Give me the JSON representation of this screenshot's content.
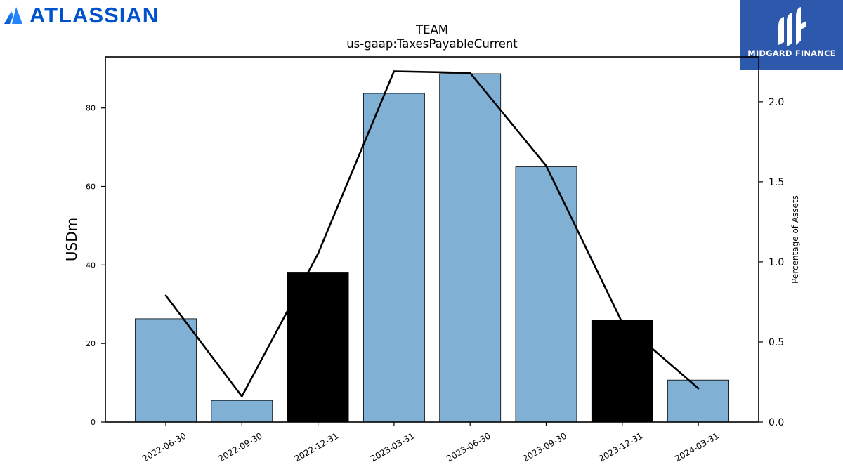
{
  "logos": {
    "left_text": "ATLASSIAN",
    "right_text": "MIDGARD FINANCE"
  },
  "chart_data": {
    "type": "bar",
    "title": "TEAM",
    "subtitle": "us-gaap:TaxesPayableCurrent",
    "xlabel": "",
    "ylabel": "USDm",
    "y2label": "Percentage of Assets",
    "categories": [
      "2022-06-30",
      "2022-09-30",
      "2022-12-31",
      "2023-03-31",
      "2023-06-30",
      "2023-09-30",
      "2023-12-31",
      "2024-03-31"
    ],
    "series": [
      {
        "type": "bar",
        "axis": "left",
        "values": [
          26.3,
          5.5,
          38.0,
          83.7,
          88.7,
          65.0,
          25.9,
          10.7
        ],
        "highlighted": [
          false,
          false,
          true,
          false,
          false,
          false,
          true,
          false
        ]
      },
      {
        "type": "line",
        "axis": "right",
        "values": [
          0.79,
          0.16,
          1.05,
          2.19,
          2.18,
          1.6,
          0.62,
          0.21
        ]
      }
    ],
    "ylim": [
      0,
      93
    ],
    "y2lim": [
      0,
      2.28
    ],
    "yticks": [
      0,
      20,
      40,
      60,
      80
    ],
    "y2ticks": [
      "0.0",
      "0.5",
      "1.0",
      "1.5",
      "2.0"
    ],
    "grid": false,
    "colors": {
      "bar": "#80b0d4",
      "bar_highlight": "#000000",
      "line": "#000000"
    }
  }
}
